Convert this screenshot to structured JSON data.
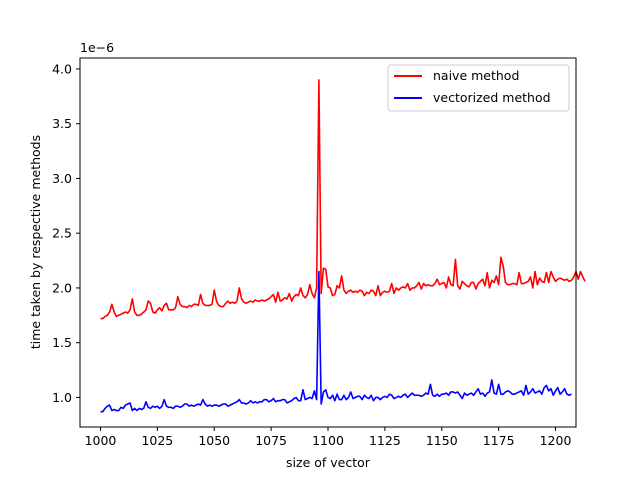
{
  "chart_data": {
    "type": "line",
    "xlabel": "size of vector",
    "ylabel": "time taken by respective methods",
    "y_offset_label": "1e−6",
    "xlim": [
      991,
      1209
    ],
    "ylim": [
      0.73,
      4.1
    ],
    "x_ticks": [
      1000,
      1025,
      1050,
      1075,
      1100,
      1125,
      1150,
      1175,
      1200
    ],
    "x_tick_labels": [
      "1000",
      "1025",
      "1050",
      "1075",
      "1100",
      "1125",
      "1150",
      "1175",
      "1200"
    ],
    "y_ticks": [
      1.0,
      1.5,
      2.0,
      2.5,
      3.0,
      3.5,
      4.0
    ],
    "y_tick_labels": [
      "1.0",
      "1.5",
      "2.0",
      "2.5",
      "3.0",
      "3.5",
      "4.0"
    ],
    "grid": false,
    "legend_position": "upper right",
    "x_start": 1000,
    "x_step": 1,
    "series": [
      {
        "name": "naive method",
        "color": "#ff0000",
        "values": [
          1.72,
          1.72,
          1.74,
          1.75,
          1.78,
          1.85,
          1.78,
          1.74,
          1.75,
          1.76,
          1.77,
          1.78,
          1.77,
          1.8,
          1.9,
          1.78,
          1.75,
          1.75,
          1.76,
          1.78,
          1.8,
          1.88,
          1.86,
          1.78,
          1.77,
          1.8,
          1.82,
          1.79,
          1.84,
          1.86,
          1.8,
          1.8,
          1.8,
          1.82,
          1.92,
          1.85,
          1.83,
          1.83,
          1.82,
          1.84,
          1.83,
          1.85,
          1.85,
          1.84,
          1.94,
          1.86,
          1.84,
          1.84,
          1.84,
          1.85,
          1.98,
          1.88,
          1.84,
          1.83,
          1.83,
          1.86,
          1.88,
          1.86,
          1.87,
          1.86,
          1.88,
          2.0,
          1.9,
          1.87,
          1.86,
          1.87,
          1.88,
          1.87,
          1.89,
          1.88,
          1.88,
          1.89,
          1.88,
          1.89,
          1.9,
          1.92,
          1.94,
          1.87,
          1.96,
          1.88,
          1.89,
          1.91,
          1.9,
          1.95,
          1.88,
          1.92,
          1.94,
          1.93,
          2.0,
          1.93,
          1.91,
          1.94,
          2.03,
          1.95,
          1.91,
          2.0,
          3.9,
          1.95,
          2.18,
          2.17,
          2.01,
          2.0,
          1.93,
          1.94,
          2.02,
          2.0,
          2.11,
          1.98,
          1.95,
          1.97,
          1.98,
          1.96,
          1.97,
          1.96,
          1.98,
          1.97,
          1.93,
          1.96,
          1.95,
          1.98,
          1.97,
          1.93,
          2.02,
          1.93,
          1.96,
          1.97,
          1.96,
          1.97,
          2.04,
          1.95,
          2.0,
          1.98,
          2.0,
          2.01,
          2.0,
          2.04,
          1.98,
          2.0,
          2.0,
          2.02,
          2.05,
          1.99,
          2.04,
          2.02,
          2.03,
          2.02,
          2.02,
          2.04,
          2.08,
          2.03,
          2.04,
          2.05,
          2.0,
          2.1,
          2.03,
          2.02,
          2.26,
          2.02,
          1.99,
          2.06,
          2.04,
          2.02,
          2.01,
          2.05,
          2.05,
          1.99,
          2.04,
          2.06,
          2.08,
          2.02,
          2.14,
          2.0,
          2.07,
          2.05,
          2.11,
          2.03,
          2.28,
          2.2,
          2.05,
          2.03,
          2.03,
          2.04,
          2.04,
          2.03,
          2.14,
          2.04,
          2.04,
          2.05,
          2.06,
          2.1,
          2.0,
          2.15,
          2.03,
          2.09,
          2.06,
          2.05,
          2.14,
          2.05,
          2.15,
          2.1,
          2.06,
          2.08,
          2.09,
          2.08,
          2.07,
          2.08,
          2.06,
          2.07,
          2.1,
          2.15,
          2.08,
          2.15,
          2.1,
          2.06
        ]
      },
      {
        "name": "vectorized method",
        "color": "#0000ff",
        "values": [
          0.87,
          0.87,
          0.9,
          0.92,
          0.93,
          0.88,
          0.89,
          0.88,
          0.88,
          0.91,
          0.9,
          0.93,
          0.94,
          0.95,
          0.88,
          0.9,
          0.88,
          0.9,
          0.89,
          0.9,
          0.96,
          0.91,
          0.9,
          0.92,
          0.91,
          0.92,
          0.9,
          0.92,
          0.98,
          0.92,
          0.91,
          0.91,
          0.9,
          0.92,
          0.92,
          0.91,
          0.92,
          0.94,
          0.94,
          0.92,
          0.93,
          0.92,
          0.93,
          0.94,
          0.93,
          0.98,
          0.94,
          0.92,
          0.93,
          0.92,
          0.93,
          0.93,
          0.92,
          0.93,
          0.94,
          0.94,
          0.92,
          0.93,
          0.94,
          0.95,
          0.96,
          0.98,
          0.95,
          0.95,
          0.94,
          0.95,
          0.97,
          0.95,
          0.96,
          0.95,
          0.96,
          0.96,
          0.98,
          0.98,
          0.96,
          0.97,
          0.99,
          0.96,
          0.97,
          0.97,
          0.98,
          0.98,
          0.95,
          0.96,
          0.97,
          0.99,
          1.0,
          0.97,
          0.97,
          1.07,
          0.98,
          0.99,
          1.0,
          0.99,
          1.06,
          0.98,
          2.15,
          0.94,
          1.05,
          1.07,
          1.0,
          0.99,
          1.02,
          0.97,
          1.03,
          0.98,
          0.98,
          1.02,
          0.98,
          1.0,
          1.05,
          0.99,
          1.0,
          1.01,
          1.01,
          0.98,
          1.02,
          1.0,
          0.99,
          1.02,
          0.97,
          1.0,
          1.0,
          0.98,
          1.0,
          1.01,
          1.0,
          1.03,
          1.02,
          0.99,
          1.0,
          1.01,
          1.0,
          1.02,
          1.03,
          1.0,
          1.02,
          1.04,
          1.02,
          1.02,
          1.02,
          1.01,
          1.02,
          1.04,
          1.03,
          1.12,
          1.02,
          1.01,
          1.03,
          1.01,
          1.03,
          1.03,
          1.04,
          1.02,
          1.05,
          1.05,
          1.04,
          1.05,
          1.02,
          0.99,
          1.04,
          1.02,
          1.03,
          1.04,
          1.02,
          1.05,
          1.08,
          1.03,
          1.04,
          1.01,
          1.04,
          1.05,
          1.16,
          1.04,
          1.03,
          1.12,
          1.03,
          1.03,
          1.05,
          1.06,
          1.05,
          1.03,
          1.03,
          1.04,
          1.05,
          1.06,
          1.02,
          1.11,
          1.03,
          1.05,
          1.08,
          1.04,
          1.05,
          1.06,
          1.03,
          1.09,
          1.11,
          1.06,
          1.08,
          1.02,
          1.06,
          1.09,
          1.03,
          1.05,
          1.08,
          1.03,
          1.02,
          1.03
        ]
      }
    ]
  }
}
